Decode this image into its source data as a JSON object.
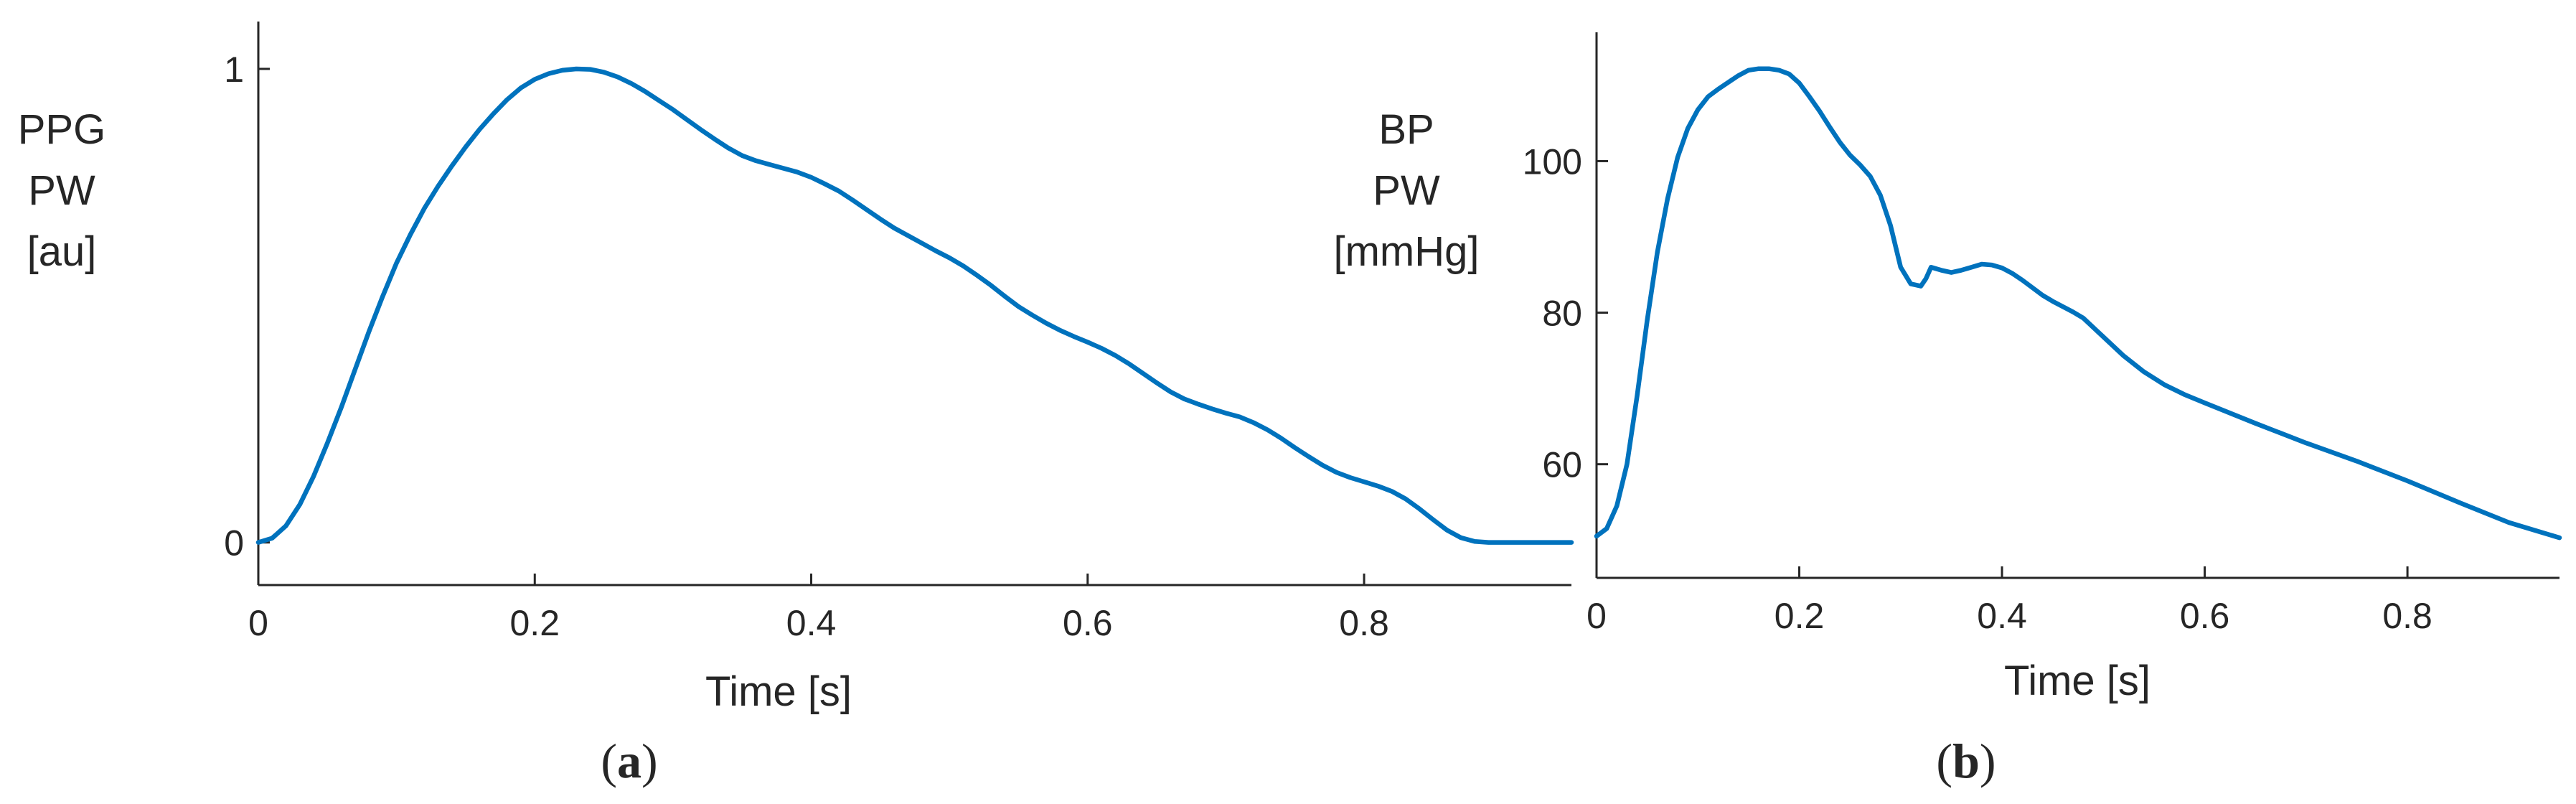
{
  "chart_data": [
    {
      "type": "line",
      "panel": "a",
      "panel_label": {
        "open": "(",
        "letter": "a",
        "close": ")"
      },
      "xlabel": "Time [s]",
      "ylabel_lines": [
        "PPG",
        "PW",
        "[au]"
      ],
      "xlim": [
        0,
        0.95
      ],
      "ylim": [
        -0.09,
        1.1
      ],
      "xticks": [
        0,
        0.2,
        0.4,
        0.6,
        0.8
      ],
      "xtick_labels": [
        "0",
        "0.2",
        "0.4",
        "0.6",
        "0.8"
      ],
      "yticks": [
        0,
        1
      ],
      "ytick_labels": [
        "0",
        "1"
      ],
      "grid": false,
      "series": [
        {
          "name": "PPG PW",
          "color": "#0072BD",
          "x": [
            0,
            0.01,
            0.02,
            0.03,
            0.04,
            0.05,
            0.06,
            0.07,
            0.08,
            0.09,
            0.1,
            0.11,
            0.12,
            0.13,
            0.14,
            0.15,
            0.16,
            0.17,
            0.18,
            0.19,
            0.2,
            0.21,
            0.22,
            0.23,
            0.24,
            0.25,
            0.26,
            0.27,
            0.28,
            0.29,
            0.3,
            0.31,
            0.32,
            0.33,
            0.34,
            0.35,
            0.36,
            0.37,
            0.38,
            0.39,
            0.4,
            0.41,
            0.42,
            0.43,
            0.44,
            0.45,
            0.46,
            0.47,
            0.48,
            0.49,
            0.5,
            0.51,
            0.52,
            0.53,
            0.54,
            0.55,
            0.56,
            0.57,
            0.58,
            0.59,
            0.6,
            0.61,
            0.62,
            0.63,
            0.64,
            0.65,
            0.66,
            0.67,
            0.68,
            0.69,
            0.7,
            0.71,
            0.72,
            0.73,
            0.74,
            0.75,
            0.76,
            0.77,
            0.78,
            0.79,
            0.8,
            0.81,
            0.82,
            0.83,
            0.84,
            0.85,
            0.86,
            0.87,
            0.88,
            0.89,
            0.9,
            0.91,
            0.92,
            0.93,
            0.94,
            0.95
          ],
          "y": [
            0.0,
            0.009,
            0.035,
            0.08,
            0.14,
            0.21,
            0.285,
            0.365,
            0.445,
            0.52,
            0.59,
            0.65,
            0.705,
            0.752,
            0.795,
            0.835,
            0.872,
            0.905,
            0.935,
            0.96,
            0.978,
            0.99,
            0.997,
            1.0,
            0.999,
            0.993,
            0.983,
            0.969,
            0.952,
            0.933,
            0.914,
            0.893,
            0.872,
            0.852,
            0.833,
            0.817,
            0.806,
            0.798,
            0.79,
            0.782,
            0.771,
            0.757,
            0.742,
            0.723,
            0.703,
            0.683,
            0.664,
            0.648,
            0.632,
            0.616,
            0.601,
            0.584,
            0.564,
            0.543,
            0.52,
            0.498,
            0.48,
            0.463,
            0.448,
            0.435,
            0.423,
            0.41,
            0.395,
            0.377,
            0.357,
            0.337,
            0.318,
            0.303,
            0.292,
            0.282,
            0.273,
            0.265,
            0.253,
            0.238,
            0.22,
            0.2,
            0.181,
            0.163,
            0.148,
            0.137,
            0.128,
            0.119,
            0.108,
            0.092,
            0.071,
            0.048,
            0.026,
            0.01,
            0.002,
            0.0,
            0.0,
            0.0,
            0.0,
            0.0,
            0.0,
            0.0
          ]
        }
      ]
    },
    {
      "type": "line",
      "panel": "b",
      "panel_label": {
        "open": "(",
        "letter": "b",
        "close": ")"
      },
      "xlabel": "Time [s]",
      "ylabel_lines": [
        "BP",
        "PW",
        "[mmHg]"
      ],
      "xlim": [
        0,
        0.95
      ],
      "ylim": [
        45,
        117
      ],
      "xticks": [
        0,
        0.2,
        0.4,
        0.6,
        0.8
      ],
      "xtick_labels": [
        "0",
        "0.2",
        "0.4",
        "0.6",
        "0.8"
      ],
      "yticks": [
        60,
        80,
        100
      ],
      "ytick_labels": [
        "60",
        "80",
        "100"
      ],
      "grid": false,
      "series": [
        {
          "name": "BP PW",
          "color": "#0072BD",
          "x": [
            0,
            0.01,
            0.02,
            0.03,
            0.04,
            0.05,
            0.06,
            0.07,
            0.08,
            0.09,
            0.1,
            0.11,
            0.12,
            0.13,
            0.14,
            0.15,
            0.16,
            0.17,
            0.18,
            0.19,
            0.2,
            0.21,
            0.22,
            0.23,
            0.24,
            0.25,
            0.26,
            0.27,
            0.28,
            0.29,
            0.3,
            0.31,
            0.32,
            0.325,
            0.33,
            0.34,
            0.35,
            0.36,
            0.37,
            0.38,
            0.39,
            0.4,
            0.41,
            0.42,
            0.43,
            0.44,
            0.45,
            0.46,
            0.47,
            0.48,
            0.5,
            0.52,
            0.54,
            0.56,
            0.58,
            0.6,
            0.65,
            0.7,
            0.75,
            0.8,
            0.85,
            0.9,
            0.95
          ],
          "y": [
            50.5,
            51.5,
            54.5,
            60.0,
            69.0,
            79.0,
            88.0,
            95.0,
            100.5,
            104.3,
            106.8,
            108.5,
            109.5,
            110.4,
            111.3,
            112.0,
            112.2,
            112.2,
            112.0,
            111.5,
            110.3,
            108.5,
            106.6,
            104.5,
            102.5,
            100.8,
            99.5,
            98.0,
            95.5,
            91.5,
            86.0,
            83.8,
            83.5,
            84.5,
            86.0,
            85.6,
            85.3,
            85.6,
            86.0,
            86.4,
            86.3,
            85.9,
            85.2,
            84.3,
            83.3,
            82.3,
            81.5,
            80.8,
            80.1,
            79.3,
            76.8,
            74.3,
            72.2,
            70.5,
            69.2,
            68.1,
            65.4,
            62.8,
            60.4,
            57.8,
            55.0,
            52.3,
            50.3
          ]
        }
      ]
    }
  ]
}
